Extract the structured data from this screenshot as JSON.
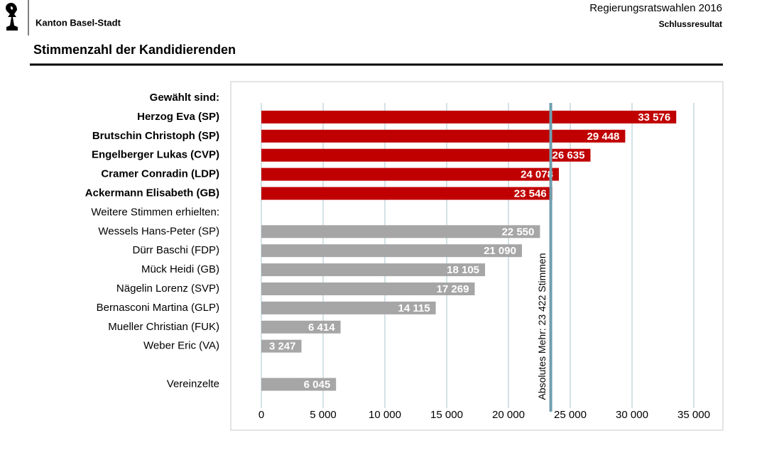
{
  "header": {
    "org": "Kanton Basel-Stadt",
    "election": "Regierungsratswahlen 2016",
    "status": "Schlussresultat"
  },
  "chart_data": {
    "type": "hbar",
    "title": "Stimmenzahl der Kandidierenden",
    "categories": [
      "Gewählt sind:",
      "Herzog Eva (SP)",
      "Brutschin Christoph (SP)",
      "Engelberger Lukas (CVP)",
      "Cramer Conradin (LDP)",
      "Ackermann Elisabeth (GB)",
      "Weitere Stimmen erhielten:",
      "Wessels Hans-Peter (SP)",
      "Dürr Baschi (FDP)",
      "Mück Heidi (GB)",
      "Nägelin Lorenz (SVP)",
      "Bernasconi Martina (GLP)",
      "Mueller Christian (FUK)",
      "Weber Eric (VA)",
      null,
      "Vereinzelte"
    ],
    "values": [
      null,
      33576,
      29448,
      26635,
      24078,
      23546,
      null,
      22550,
      21090,
      18105,
      17269,
      14115,
      6414,
      3247,
      null,
      6045
    ],
    "value_labels": [
      null,
      "33 576",
      "29 448",
      "26 635",
      "24 078",
      "23 546",
      null,
      "22 550",
      "21 090",
      "18 105",
      "17 269",
      "14 115",
      "6 414",
      "3 247",
      null,
      "6 045"
    ],
    "colors": [
      null,
      "#c00000",
      "#c00000",
      "#c00000",
      "#c00000",
      "#c00000",
      null,
      "#a6a6a6",
      "#a6a6a6",
      "#a6a6a6",
      "#a6a6a6",
      "#a6a6a6",
      "#a6a6a6",
      "#a6a6a6",
      null,
      "#a6a6a6"
    ],
    "bold_labels": [
      true,
      true,
      true,
      true,
      true,
      true,
      false,
      false,
      false,
      false,
      false,
      false,
      false,
      false,
      false,
      false
    ],
    "xlim": [
      0,
      35000
    ],
    "xticks": [
      0,
      {
        "value": 5000,
        "label": "5 000"
      },
      {
        "value": 10000,
        "label": "10 000"
      },
      {
        "value": 15000,
        "label": "15 000"
      },
      {
        "value": 20000,
        "label": "20 000"
      },
      {
        "value": 25000,
        "label": "25 000"
      },
      {
        "value": 30000,
        "label": "30 000"
      },
      {
        "value": 35000,
        "label": "35 000"
      }
    ],
    "grid": true,
    "reference_line": {
      "value": 23422,
      "label": "Absolutes Mehr: 23  422 Stimmen",
      "color": "#6f9fae"
    }
  }
}
